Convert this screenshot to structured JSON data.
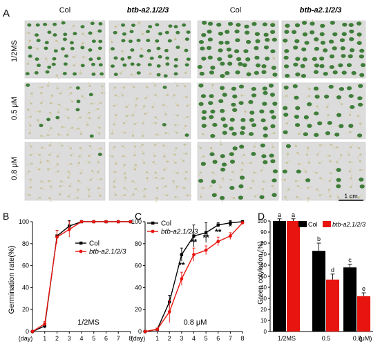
{
  "panel_a": {
    "letter": "A",
    "column_labels": [
      "Col",
      "btb-a2.1/2/3",
      "Col",
      "btb-a2.1/2/3"
    ],
    "row_labels": [
      "1/2MS",
      "0.5 μM",
      "0.8 μM"
    ],
    "scale_bar": "1 cm",
    "green_density": [
      [
        0.78,
        0.82,
        0.97,
        0.97
      ],
      [
        0.12,
        0.05,
        0.93,
        0.62
      ],
      [
        0.04,
        0.03,
        0.45,
        0.22
      ]
    ],
    "colors": {
      "cotyledon_green": "#3f7d3a",
      "seedling_pale": "#d8d2b8",
      "plate": "#dcdcdc"
    }
  },
  "chart_data": [
    {
      "panel": "B",
      "type": "line",
      "title": "",
      "annotation": "1/2MS",
      "xlabel": "(day)",
      "ylabel": "Germination rate(%)",
      "x": [
        0,
        1,
        2,
        3,
        4,
        5,
        6,
        7,
        8
      ],
      "xlim": [
        0,
        8
      ],
      "ylim": [
        0,
        100
      ],
      "yticks": [
        0,
        20,
        40,
        60,
        80,
        100
      ],
      "legend": "right",
      "series": [
        {
          "name": "Col",
          "color": "#000000",
          "values": [
            0,
            5,
            87,
            96,
            100,
            100,
            100,
            100,
            100
          ],
          "errors": [
            0,
            2,
            5,
            5,
            0,
            0,
            0,
            0,
            0
          ]
        },
        {
          "name": "btb-a2.1/2/3",
          "color": "#e8140f",
          "values": [
            0,
            7,
            86,
            93,
            100,
            100,
            100,
            100,
            100
          ],
          "errors": [
            0,
            2,
            6,
            7,
            0,
            0,
            0,
            0,
            0
          ]
        }
      ]
    },
    {
      "panel": "C",
      "type": "line",
      "title": "",
      "annotation": "0.8 μM",
      "xlabel": "(day)",
      "ylabel": "",
      "x": [
        0,
        1,
        2,
        3,
        4,
        5,
        6,
        7,
        8
      ],
      "xlim": [
        0,
        8
      ],
      "ylim": [
        0,
        100
      ],
      "yticks": [
        0,
        20,
        40,
        60,
        80,
        100
      ],
      "legend": "top-left",
      "significance": [
        {
          "x": 3,
          "y": 58,
          "label": "**"
        },
        {
          "x": 4,
          "y": 79,
          "label": "**"
        },
        {
          "x": 5,
          "y": 83,
          "label": "**"
        },
        {
          "x": 6,
          "y": 88,
          "label": "**"
        },
        {
          "x": 7,
          "y": 93,
          "label": "*"
        }
      ],
      "series": [
        {
          "name": "Col",
          "color": "#000000",
          "values": [
            0,
            2,
            27,
            70,
            87,
            90,
            97,
            99,
            100
          ],
          "errors": [
            0,
            1,
            6,
            6,
            10,
            9,
            2,
            2,
            0
          ]
        },
        {
          "name": "btb-a2.1/2/3",
          "color": "#e8140f",
          "values": [
            0,
            2,
            18,
            48,
            70,
            74,
            82,
            87,
            99
          ],
          "errors": [
            0,
            1,
            10,
            6,
            6,
            4,
            4,
            3,
            1
          ]
        }
      ]
    },
    {
      "panel": "D",
      "type": "bar",
      "title": "",
      "xlabel": "(μM)",
      "ylabel": "Green cotyledon (%)",
      "categories": [
        "1/2MS",
        "0.5",
        "0.8"
      ],
      "ylim": [
        0,
        100
      ],
      "yticks": [
        0,
        10,
        20,
        30,
        40,
        50,
        60,
        70,
        80,
        90,
        100
      ],
      "legend": "top",
      "series": [
        {
          "name": "Col",
          "color": "#000000",
          "values": [
            100,
            73,
            58
          ],
          "errors": [
            2,
            7,
            3
          ],
          "letters": [
            "a",
            "b",
            "c"
          ]
        },
        {
          "name": "btb-a2.1/2/3",
          "color": "#e8140f",
          "values": [
            100,
            47,
            32
          ],
          "errors": [
            2,
            5,
            3
          ],
          "letters": [
            "a",
            "d",
            "e"
          ]
        }
      ]
    }
  ]
}
